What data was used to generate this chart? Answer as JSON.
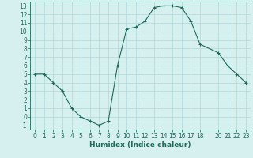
{
  "x": [
    0,
    1,
    2,
    3,
    4,
    5,
    6,
    7,
    8,
    9,
    10,
    11,
    12,
    13,
    14,
    15,
    16,
    17,
    18,
    20,
    21,
    22,
    23
  ],
  "y": [
    5,
    5,
    4,
    3,
    1,
    0,
    -0.5,
    -1,
    -0.5,
    6,
    10.3,
    10.5,
    11.2,
    12.8,
    13,
    13,
    12.8,
    11.2,
    8.5,
    7.5,
    6,
    5,
    4
  ],
  "line_color": "#1a6b5a",
  "marker": "+",
  "bg_color": "#d6f0f0",
  "grid_color": "#b0d8d8",
  "xlabel": "Humidex (Indice chaleur)",
  "xlim": [
    -0.5,
    23.5
  ],
  "ylim": [
    -1.5,
    13.5
  ],
  "xticks": [
    0,
    1,
    2,
    3,
    4,
    5,
    6,
    7,
    8,
    9,
    10,
    11,
    12,
    13,
    14,
    15,
    16,
    17,
    18,
    20,
    21,
    22,
    23
  ],
  "yticks": [
    -1,
    0,
    1,
    2,
    3,
    4,
    5,
    6,
    7,
    8,
    9,
    10,
    11,
    12,
    13
  ],
  "label_fontsize": 6.5,
  "tick_fontsize": 5.5
}
